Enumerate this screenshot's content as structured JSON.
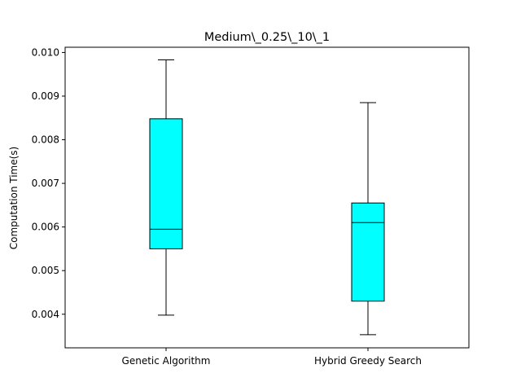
{
  "chart_data": {
    "type": "box",
    "title": "Medium\\_0.25\\_10\\_1",
    "xlabel": "",
    "ylabel": "Computation Time(s)",
    "ylim": [
      0.00323,
      0.01012
    ],
    "yticks": [
      0.004,
      0.005,
      0.006,
      0.007,
      0.008,
      0.009,
      0.01
    ],
    "ytick_labels": [
      "0.004",
      "0.005",
      "0.006",
      "0.007",
      "0.008",
      "0.009",
      "0.010"
    ],
    "grid": false,
    "categories": [
      "Genetic Algorithm",
      "Hybrid Greedy Search"
    ],
    "boxes": [
      {
        "whisker_low": 0.00398,
        "q1": 0.0055,
        "median": 0.00595,
        "q3": 0.00848,
        "whisker_high": 0.00983
      },
      {
        "whisker_low": 0.00353,
        "q1": 0.0043,
        "median": 0.0061,
        "q3": 0.00655,
        "whisker_high": 0.00885
      }
    ],
    "colors": {
      "box_fill": "#00ffff",
      "line": "#000000",
      "axes": "#000000"
    }
  }
}
